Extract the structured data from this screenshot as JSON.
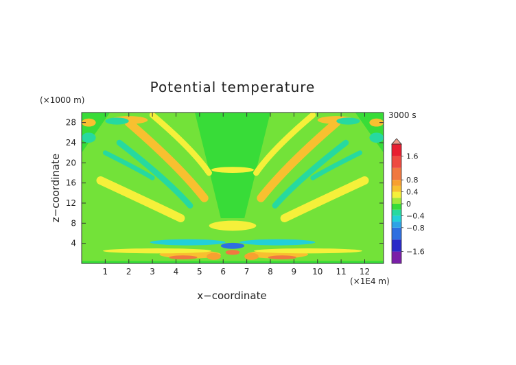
{
  "chart_data": {
    "type": "heatmap",
    "title": "Potential temperature",
    "xlabel": "x−coordinate",
    "ylabel": "z−coordinate",
    "x_unit": "(×1E4 m)",
    "y_unit": "(×1000 m)",
    "time_label": "3000 s",
    "xlim": [
      0,
      12.8
    ],
    "ylim": [
      0,
      30
    ],
    "x_ticks": [
      1,
      2,
      3,
      4,
      5,
      6,
      7,
      8,
      9,
      10,
      11,
      12
    ],
    "y_ticks": [
      4,
      8,
      12,
      16,
      20,
      24,
      28
    ],
    "x_tick_labels": [
      "1",
      "2",
      "3",
      "4",
      "5",
      "6",
      "7",
      "8",
      "9",
      "10",
      "11",
      "12"
    ],
    "y_tick_labels": [
      "4",
      "8",
      "12",
      "16",
      "20",
      "24",
      "28"
    ],
    "colorbar": {
      "labels": [
        {
          "value": 1.6,
          "text": "1.6"
        },
        {
          "value": 0.8,
          "text": "0.8"
        },
        {
          "value": 0.4,
          "text": "0.4"
        },
        {
          "value": 0,
          "text": "0"
        },
        {
          "value": -0.4,
          "text": "−0.4"
        },
        {
          "value": -0.8,
          "text": "−0.8"
        },
        {
          "value": -1.6,
          "text": "−1.6"
        }
      ],
      "levels": [
        {
          "from": -2.0,
          "to": -1.6,
          "color": "#7a1fa8"
        },
        {
          "from": -1.6,
          "to": -1.2,
          "color": "#2a2ac8"
        },
        {
          "from": -1.2,
          "to": -0.8,
          "color": "#2f6fe0"
        },
        {
          "from": -0.8,
          "to": -0.6,
          "color": "#2ea3e6"
        },
        {
          "from": -0.6,
          "to": -0.4,
          "color": "#22d0d8"
        },
        {
          "from": -0.4,
          "to": -0.2,
          "color": "#26d9a0"
        },
        {
          "from": -0.2,
          "to": 0.0,
          "color": "#38dc38"
        },
        {
          "from": 0.0,
          "to": 0.2,
          "color": "#a4e83a"
        },
        {
          "from": 0.2,
          "to": 0.4,
          "color": "#f5f03a"
        },
        {
          "from": 0.4,
          "to": 0.6,
          "color": "#f8c030"
        },
        {
          "from": 0.6,
          "to": 0.8,
          "color": "#f8a030"
        },
        {
          "from": 0.8,
          "to": 1.2,
          "color": "#f07840"
        },
        {
          "from": 1.2,
          "to": 1.6,
          "color": "#ee4a40"
        },
        {
          "from": 1.6,
          "to": 2.0,
          "color": "#e81e30"
        }
      ],
      "overflow_color": "#ee9a8a"
    },
    "field_features": [
      {
        "kind": "ellipse",
        "x": 4.6,
        "z": 1.8,
        "rx": 1.3,
        "rz": 0.8,
        "value": 0.5
      },
      {
        "kind": "ellipse",
        "x": 4.3,
        "z": 1.2,
        "rx": 0.6,
        "rz": 0.4,
        "value": 1.0
      },
      {
        "kind": "ellipse",
        "x": 8.3,
        "z": 1.8,
        "rx": 1.3,
        "rz": 0.8,
        "value": 0.5
      },
      {
        "kind": "ellipse",
        "x": 8.5,
        "z": 1.2,
        "rx": 0.6,
        "rz": 0.4,
        "value": 1.0
      },
      {
        "kind": "ellipse",
        "x": 6.4,
        "z": 3.5,
        "rx": 0.5,
        "rz": 0.6,
        "value": -1.2
      },
      {
        "kind": "ellipse",
        "x": 6.4,
        "z": 2.2,
        "rx": 0.3,
        "rz": 0.5,
        "value": 0.9
      },
      {
        "kind": "ellipse",
        "x": 5.6,
        "z": 1.4,
        "rx": 0.3,
        "rz": 0.7,
        "value": 0.6
      },
      {
        "kind": "ellipse",
        "x": 7.2,
        "z": 1.4,
        "rx": 0.3,
        "rz": 0.7,
        "value": 0.6
      },
      {
        "kind": "ellipse",
        "x": 4.5,
        "z": 4.2,
        "rx": 1.6,
        "rz": 0.6,
        "value": -0.45
      },
      {
        "kind": "ellipse",
        "x": 8.3,
        "z": 4.2,
        "rx": 1.6,
        "rz": 0.6,
        "value": -0.45
      },
      {
        "kind": "ellipse",
        "x": 6.4,
        "z": 7.5,
        "rx": 1.0,
        "rz": 1.0,
        "value": 0.3
      },
      {
        "kind": "ellipse",
        "x": 3.2,
        "z": 2.5,
        "rx": 2.3,
        "rz": 0.5,
        "value": 0.3
      },
      {
        "kind": "ellipse",
        "x": 9.6,
        "z": 2.5,
        "rx": 2.3,
        "rz": 0.5,
        "value": 0.3
      },
      {
        "kind": "ellipse",
        "x": 6.4,
        "z": 18.6,
        "rx": 0.9,
        "rz": 0.6,
        "value": 0.3
      },
      {
        "kind": "ellipse",
        "x": 2.0,
        "z": 28.5,
        "rx": 0.8,
        "rz": 0.8,
        "value": 0.5
      },
      {
        "kind": "ellipse",
        "x": 10.8,
        "z": 28.5,
        "rx": 0.8,
        "rz": 0.8,
        "value": 0.5
      },
      {
        "kind": "ellipse",
        "x": 1.5,
        "z": 28.3,
        "rx": 0.5,
        "rz": 0.7,
        "value": -0.4
      },
      {
        "kind": "ellipse",
        "x": 11.3,
        "z": 28.3,
        "rx": 0.5,
        "rz": 0.7,
        "value": -0.4
      },
      {
        "kind": "ellipse",
        "x": 0.3,
        "z": 25.0,
        "rx": 0.3,
        "rz": 1.0,
        "value": -0.3
      },
      {
        "kind": "ellipse",
        "x": 12.5,
        "z": 25.0,
        "rx": 0.3,
        "rz": 1.0,
        "value": -0.3
      },
      {
        "kind": "ellipse",
        "x": 0.3,
        "z": 28.0,
        "rx": 0.3,
        "rz": 0.8,
        "value": 0.4
      },
      {
        "kind": "ellipse",
        "x": 12.5,
        "z": 28.0,
        "rx": 0.3,
        "rz": 0.8,
        "value": 0.4
      }
    ],
    "field_bands": [
      {
        "side": "left",
        "x0": 4.2,
        "z0": 9.0,
        "x1": 0.8,
        "z1": 16.5,
        "w": 0.35,
        "value": 0.3
      },
      {
        "side": "left",
        "x0": 4.6,
        "z0": 11.5,
        "x1": 1.6,
        "z1": 24.0,
        "w": 0.25,
        "value": -0.3
      },
      {
        "side": "left",
        "x0": 5.2,
        "z0": 13.0,
        "x1": 2.0,
        "z1": 28.0,
        "w": 0.35,
        "value": 0.45
      },
      {
        "side": "left",
        "x0": 5.4,
        "z0": 18.0,
        "x1": 3.0,
        "z1": 29.5,
        "w": 0.25,
        "value": 0.3
      },
      {
        "side": "left",
        "x0": 3.0,
        "z0": 17.0,
        "x1": 1.0,
        "z1": 22.0,
        "w": 0.2,
        "value": -0.25
      },
      {
        "side": "right",
        "x0": 8.6,
        "z0": 9.0,
        "x1": 12.0,
        "z1": 16.5,
        "w": 0.35,
        "value": 0.3
      },
      {
        "side": "right",
        "x0": 8.2,
        "z0": 11.5,
        "x1": 11.2,
        "z1": 24.0,
        "w": 0.25,
        "value": -0.3
      },
      {
        "side": "right",
        "x0": 7.6,
        "z0": 13.0,
        "x1": 10.8,
        "z1": 28.0,
        "w": 0.35,
        "value": 0.45
      },
      {
        "side": "right",
        "x0": 7.4,
        "z0": 18.0,
        "x1": 9.8,
        "z1": 29.5,
        "w": 0.25,
        "value": 0.3
      },
      {
        "side": "right",
        "x0": 9.8,
        "z0": 17.0,
        "x1": 11.8,
        "z1": 22.0,
        "w": 0.2,
        "value": -0.25
      }
    ]
  }
}
